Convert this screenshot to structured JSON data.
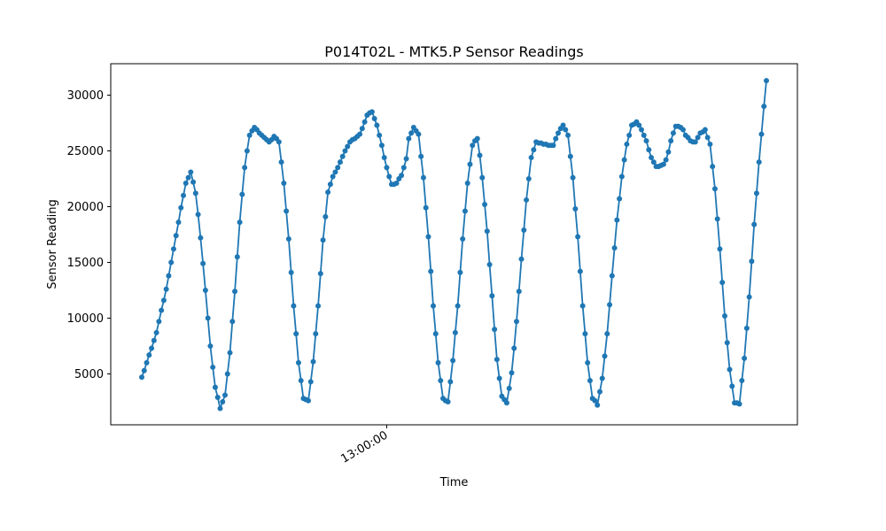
{
  "chart_data": {
    "type": "line",
    "title": "P014T02L - MTK5.P Sensor Readings",
    "xlabel": "Time",
    "ylabel": "Sensor Reading",
    "x_ticks": [
      {
        "index": 100,
        "label": "13:00:00"
      }
    ],
    "y_ticks": [
      5000,
      10000,
      15000,
      20000,
      25000,
      30000
    ],
    "ylim": [
      0,
      32500
    ],
    "grid": false,
    "marker": "circle",
    "series": [
      {
        "color": "#1f77b4",
        "values": [
          4700,
          5300,
          6000,
          6700,
          7300,
          8000,
          8700,
          9700,
          10700,
          11600,
          12600,
          13800,
          15000,
          16200,
          17400,
          18600,
          19900,
          21000,
          22100,
          22600,
          23100,
          22200,
          21200,
          19300,
          17200,
          14900,
          12500,
          10000,
          7500,
          5600,
          3800,
          2900,
          1900,
          2500,
          3100,
          5000,
          6900,
          9700,
          12400,
          15500,
          18600,
          21100,
          23500,
          25000,
          26400,
          26800,
          27100,
          26900,
          26600,
          26400,
          26200,
          26000,
          25800,
          26000,
          26300,
          26100,
          25800,
          24000,
          22100,
          19600,
          17100,
          14100,
          11100,
          8600,
          6000,
          4400,
          2800,
          2700,
          2600,
          4300,
          6100,
          8600,
          11100,
          14000,
          17000,
          19100,
          21300,
          22000,
          22700,
          23100,
          23500,
          24000,
          24500,
          25000,
          25400,
          25800,
          26000,
          26100,
          26300,
          26500,
          27000,
          27600,
          28200,
          28400,
          28500,
          27900,
          27300,
          26400,
          25500,
          24400,
          23500,
          22700,
          22000,
          22000,
          22100,
          22500,
          22800,
          23500,
          24300,
          26100,
          26600,
          27100,
          26800,
          26500,
          24500,
          22600,
          19900,
          17300,
          14200,
          11100,
          8600,
          6000,
          4400,
          2800,
          2600,
          2500,
          4300,
          6200,
          8700,
          11100,
          14100,
          17100,
          19600,
          22100,
          23800,
          25500,
          25900,
          26100,
          24600,
          22600,
          20200,
          17800,
          14800,
          12000,
          9000,
          6300,
          4600,
          3000,
          2700,
          2400,
          3700,
          5100,
          7300,
          9700,
          12400,
          15300,
          17900,
          20600,
          22500,
          24400,
          25100,
          25800,
          25700,
          25700,
          25600,
          25600,
          25500,
          25500,
          25500,
          26100,
          26600,
          27000,
          27300,
          26900,
          26400,
          24500,
          22600,
          19800,
          17300,
          14200,
          11100,
          8600,
          6000,
          4400,
          2800,
          2600,
          2200,
          3400,
          4600,
          6600,
          8600,
          11200,
          13800,
          16300,
          18800,
          20700,
          22700,
          24200,
          25600,
          26400,
          27300,
          27400,
          27600,
          27300,
          26900,
          26400,
          25900,
          25100,
          24400,
          24000,
          23600,
          23600,
          23700,
          23800,
          24200,
          24900,
          25900,
          26600,
          27200,
          27200,
          27100,
          26900,
          26400,
          26200,
          25900,
          25800,
          25800,
          26200,
          26600,
          26700,
          26900,
          26200,
          25600,
          23600,
          21600,
          18900,
          16200,
          13200,
          10200,
          7800,
          5400,
          3900,
          2400,
          2400,
          2300,
          4400,
          6400,
          9100,
          11900,
          15100,
          18400,
          21200,
          24000,
          26500,
          29000,
          31300
        ]
      }
    ]
  }
}
